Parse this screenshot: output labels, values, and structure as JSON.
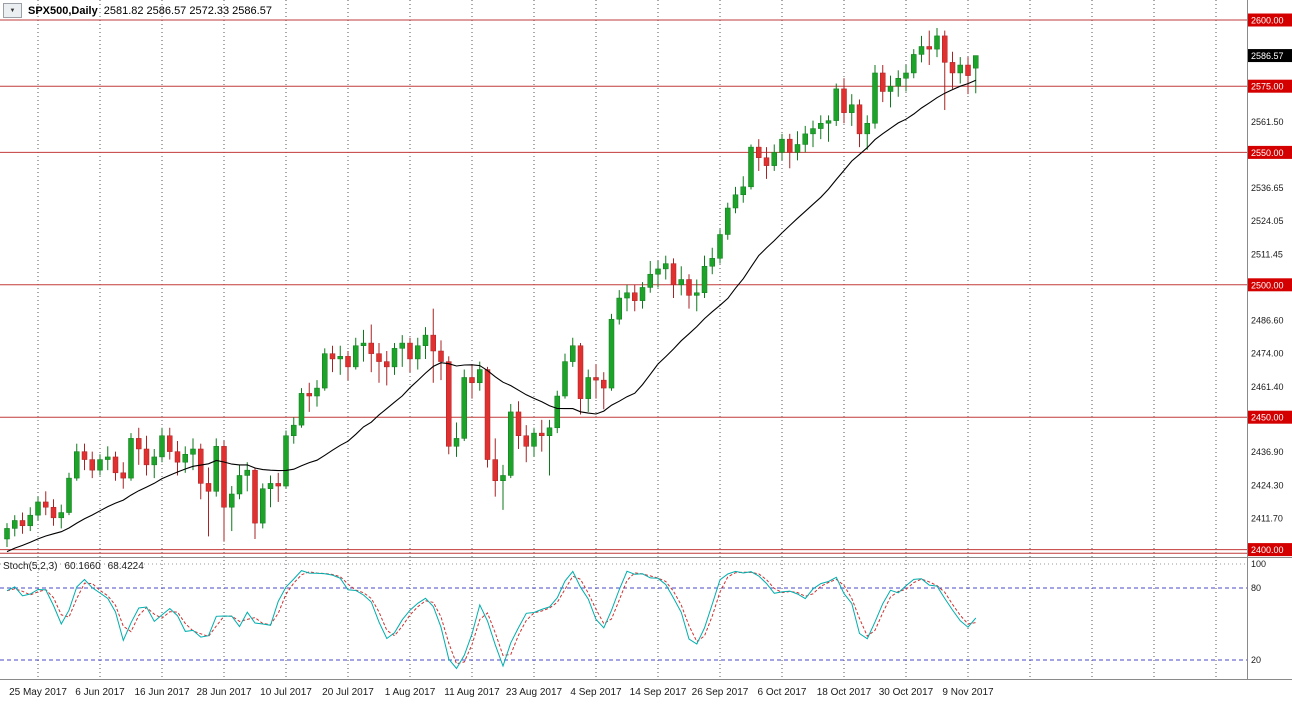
{
  "header": {
    "collapse_arrow": "▼",
    "symbol_period": "SPX500,Daily",
    "ohlc_text": "2581.82 2586.57 2572.33 2586.57"
  },
  "indicator": {
    "name": "Stoch(5,2,3)",
    "main_value": "60.1660",
    "signal_value": "68.4224"
  },
  "colors": {
    "background": "#ffffff",
    "level_line": "#c23b3b",
    "level_box_bg": "#d40000",
    "level_box_fg": "#ffffff",
    "current_box_bg": "#000000",
    "current_box_fg": "#ffffff",
    "axis_text": "#1a1a1a",
    "grid": "#555555",
    "separator": "#8a8a8a",
    "stoch_level_line": "#4a4ac8"
  },
  "chart_data": {
    "type": "candlestick",
    "symbol": "SPX500",
    "timeframe": "Daily",
    "grid": "vertical-dotted",
    "legend_position": "none",
    "visible_price_range": [
      2396,
      2606
    ],
    "hlines": [
      2398.6,
      2400,
      2450,
      2500,
      2550,
      2575,
      2600
    ],
    "x_labels": [
      "25 May 2017",
      "6 Jun 2017",
      "16 Jun 2017",
      "28 Jun 2017",
      "10 Jul 2017",
      "20 Jul 2017",
      "1 Aug 2017",
      "11 Aug 2017",
      "23 Aug 2017",
      "4 Sep 2017",
      "14 Sep 2017",
      "26 Sep 2017",
      "6 Oct 2017",
      "18 Oct 2017",
      "30 Oct 2017",
      "9 Nov 2017"
    ],
    "bars_per_label": 8,
    "first_labeled_bar": 4,
    "y_axis": {
      "red_labels": [
        {
          "label": "2600.00",
          "price": 2600
        },
        {
          "label": "2575.00",
          "price": 2575
        },
        {
          "label": "2550.00",
          "price": 2550
        },
        {
          "label": "2500.00",
          "price": 2500
        },
        {
          "label": "2450.00",
          "price": 2450
        },
        {
          "label": "2400.00",
          "price": 2400
        }
      ],
      "gray_labels": [
        {
          "label": "2561.50",
          "price": 2561.5
        },
        {
          "label": "2536.65",
          "price": 2536.65
        },
        {
          "label": "2524.05",
          "price": 2524.05
        },
        {
          "label": "2511.45",
          "price": 2511.45
        },
        {
          "label": "2486.60",
          "price": 2486.6
        },
        {
          "label": "2474.00",
          "price": 2474.0
        },
        {
          "label": "2461.40",
          "price": 2461.4
        },
        {
          "label": "2436.90",
          "price": 2436.9
        },
        {
          "label": "2424.30",
          "price": 2424.3
        },
        {
          "label": "2411.70",
          "price": 2411.7
        }
      ],
      "current": {
        "label": "2586.57",
        "price": 2586.57
      }
    },
    "bull_color": "#1da32a",
    "bear_color": "#e03030",
    "bull_wick_color": "#0e7a1b",
    "bear_wick_color": "#a82323",
    "ma": {
      "period": 20,
      "color": "#000000",
      "seed": [
        2382,
        2385,
        2388,
        2390,
        2392,
        2394,
        2396,
        2398,
        2399,
        2400,
        2401,
        2402,
        2402,
        2403,
        2403,
        2404,
        2404,
        2405,
        2405,
        2406
      ]
    },
    "stochastic": {
      "k_period": 5,
      "d_period": 2,
      "slowing": 3,
      "range": [
        0,
        100
      ],
      "levels": [
        20,
        80
      ],
      "axis_labels": [
        {
          "label": "100",
          "value": 100
        },
        {
          "label": "80",
          "value": 80
        },
        {
          "label": "20",
          "value": 20
        }
      ],
      "main_color": "#00aeae",
      "signal_color": "#cc3333",
      "main_value": 60.166,
      "signal_value": 68.4224
    },
    "candles": [
      [
        2404,
        2410,
        2401,
        2408
      ],
      [
        2408,
        2413,
        2405,
        2411
      ],
      [
        2411,
        2414,
        2406,
        2409
      ],
      [
        2409,
        2416,
        2407,
        2413
      ],
      [
        2413,
        2420,
        2411,
        2418
      ],
      [
        2418,
        2422,
        2413,
        2416
      ],
      [
        2416,
        2419,
        2409,
        2412
      ],
      [
        2412,
        2417,
        2408,
        2414
      ],
      [
        2414,
        2429,
        2413,
        2427
      ],
      [
        2427,
        2440,
        2426,
        2437
      ],
      [
        2437,
        2440,
        2430,
        2434
      ],
      [
        2434,
        2437,
        2427,
        2430
      ],
      [
        2430,
        2436,
        2428,
        2434
      ],
      [
        2434,
        2439,
        2430,
        2435
      ],
      [
        2435,
        2437,
        2426,
        2429
      ],
      [
        2429,
        2433,
        2423,
        2427
      ],
      [
        2427,
        2444,
        2426,
        2442
      ],
      [
        2442,
        2446,
        2432,
        2438
      ],
      [
        2438,
        2443,
        2428,
        2432
      ],
      [
        2432,
        2438,
        2427,
        2435
      ],
      [
        2435,
        2446,
        2433,
        2443
      ],
      [
        2443,
        2446,
        2434,
        2437
      ],
      [
        2437,
        2441,
        2428,
        2433
      ],
      [
        2433,
        2439,
        2429,
        2436
      ],
      [
        2436,
        2442,
        2430,
        2438
      ],
      [
        2438,
        2440,
        2419,
        2425
      ],
      [
        2425,
        2431,
        2405,
        2422
      ],
      [
        2422,
        2442,
        2420,
        2439
      ],
      [
        2439,
        2441,
        2403,
        2416
      ],
      [
        2416,
        2424,
        2407,
        2421
      ],
      [
        2421,
        2432,
        2419,
        2428
      ],
      [
        2428,
        2433,
        2422,
        2430
      ],
      [
        2430,
        2431,
        2404,
        2410
      ],
      [
        2410,
        2425,
        2408,
        2423
      ],
      [
        2423,
        2428,
        2416,
        2425
      ],
      [
        2425,
        2429,
        2418,
        2424
      ],
      [
        2424,
        2445,
        2423,
        2443
      ],
      [
        2443,
        2450,
        2440,
        2447
      ],
      [
        2447,
        2461,
        2446,
        2459
      ],
      [
        2459,
        2463,
        2452,
        2458
      ],
      [
        2458,
        2464,
        2454,
        2461
      ],
      [
        2461,
        2476,
        2460,
        2474
      ],
      [
        2474,
        2477,
        2467,
        2472
      ],
      [
        2472,
        2477,
        2466,
        2473
      ],
      [
        2473,
        2475,
        2464,
        2469
      ],
      [
        2469,
        2480,
        2468,
        2477
      ],
      [
        2477,
        2483,
        2471,
        2478
      ],
      [
        2478,
        2485,
        2467,
        2474
      ],
      [
        2474,
        2478,
        2463,
        2471
      ],
      [
        2471,
        2475,
        2462,
        2469
      ],
      [
        2469,
        2478,
        2466,
        2476
      ],
      [
        2476,
        2481,
        2469,
        2478
      ],
      [
        2478,
        2480,
        2467,
        2472
      ],
      [
        2472,
        2480,
        2468,
        2477
      ],
      [
        2477,
        2484,
        2472,
        2481
      ],
      [
        2481,
        2491,
        2463,
        2475
      ],
      [
        2475,
        2479,
        2464,
        2471
      ],
      [
        2471,
        2473,
        2436,
        2439
      ],
      [
        2439,
        2448,
        2435,
        2442
      ],
      [
        2442,
        2468,
        2441,
        2465
      ],
      [
        2465,
        2470,
        2457,
        2463
      ],
      [
        2463,
        2471,
        2460,
        2468
      ],
      [
        2468,
        2469,
        2431,
        2434
      ],
      [
        2434,
        2442,
        2420,
        2426
      ],
      [
        2426,
        2432,
        2415,
        2428
      ],
      [
        2428,
        2455,
        2427,
        2452
      ],
      [
        2452,
        2456,
        2438,
        2443
      ],
      [
        2443,
        2447,
        2433,
        2439
      ],
      [
        2439,
        2446,
        2435,
        2444
      ],
      [
        2444,
        2449,
        2437,
        2443
      ],
      [
        2443,
        2449,
        2428,
        2446
      ],
      [
        2446,
        2460,
        2444,
        2458
      ],
      [
        2458,
        2474,
        2457,
        2471
      ],
      [
        2471,
        2480,
        2469,
        2477
      ],
      [
        2477,
        2478,
        2451,
        2457
      ],
      [
        2457,
        2468,
        2452,
        2465
      ],
      [
        2465,
        2470,
        2457,
        2464
      ],
      [
        2464,
        2467,
        2453,
        2461
      ],
      [
        2461,
        2489,
        2460,
        2487
      ],
      [
        2487,
        2498,
        2485,
        2495
      ],
      [
        2495,
        2500,
        2490,
        2497
      ],
      [
        2497,
        2500,
        2490,
        2494
      ],
      [
        2494,
        2501,
        2491,
        2499
      ],
      [
        2499,
        2509,
        2497,
        2504
      ],
      [
        2504,
        2509,
        2499,
        2506
      ],
      [
        2506,
        2511,
        2502,
        2508
      ],
      [
        2508,
        2510,
        2495,
        2500
      ],
      [
        2500,
        2507,
        2496,
        2502
      ],
      [
        2502,
        2504,
        2491,
        2496
      ],
      [
        2496,
        2502,
        2490,
        2497
      ],
      [
        2497,
        2511,
        2495,
        2507
      ],
      [
        2507,
        2514,
        2504,
        2510
      ],
      [
        2510,
        2521,
        2508,
        2519
      ],
      [
        2519,
        2531,
        2517,
        2529
      ],
      [
        2529,
        2537,
        2527,
        2534
      ],
      [
        2534,
        2541,
        2531,
        2537
      ],
      [
        2537,
        2553,
        2536,
        2552
      ],
      [
        2552,
        2555,
        2543,
        2548
      ],
      [
        2548,
        2552,
        2540,
        2545
      ],
      [
        2545,
        2553,
        2543,
        2550
      ],
      [
        2550,
        2557,
        2547,
        2555
      ],
      [
        2555,
        2557,
        2544,
        2550
      ],
      [
        2550,
        2558,
        2547,
        2553
      ],
      [
        2553,
        2560,
        2550,
        2557
      ],
      [
        2557,
        2562,
        2552,
        2559
      ],
      [
        2559,
        2564,
        2555,
        2561
      ],
      [
        2561,
        2564,
        2554,
        2562
      ],
      [
        2562,
        2576,
        2560,
        2574
      ],
      [
        2574,
        2578,
        2561,
        2565
      ],
      [
        2565,
        2572,
        2560,
        2568
      ],
      [
        2568,
        2570,
        2552,
        2557
      ],
      [
        2557,
        2564,
        2551,
        2561
      ],
      [
        2561,
        2583,
        2559,
        2580
      ],
      [
        2580,
        2583,
        2569,
        2573
      ],
      [
        2573,
        2579,
        2567,
        2575
      ],
      [
        2575,
        2581,
        2571,
        2578
      ],
      [
        2578,
        2583,
        2573,
        2580
      ],
      [
        2580,
        2589,
        2578,
        2587
      ],
      [
        2587,
        2594,
        2584,
        2590
      ],
      [
        2590,
        2596,
        2583,
        2589
      ],
      [
        2589,
        2597,
        2586,
        2594
      ],
      [
        2594,
        2596,
        2566,
        2584
      ],
      [
        2584,
        2588,
        2574,
        2580
      ],
      [
        2580,
        2586,
        2576,
        2583
      ],
      [
        2583,
        2586,
        2572,
        2579
      ],
      [
        2581.82,
        2586.57,
        2572.33,
        2586.57
      ]
    ]
  }
}
